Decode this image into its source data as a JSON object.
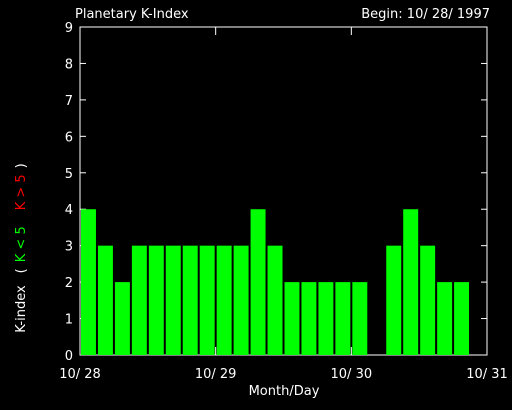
{
  "chart_data": {
    "type": "bar",
    "title": "Planetary K-Index",
    "subtitle": "Begin: 10/ 28/ 1997",
    "x_label": "Month/Day",
    "y_label": {
      "text": "K-index",
      "open": "(",
      "close": ")"
    },
    "legend": [
      {
        "label": "K < 5",
        "color": "#00ff00"
      },
      {
        "label": "K > 5",
        "color": "#ff0000"
      }
    ],
    "x": [
      0,
      3,
      6,
      9,
      12,
      15,
      18,
      21,
      24,
      27,
      30,
      33,
      36,
      39,
      42,
      45,
      48,
      51,
      54,
      57,
      60,
      63,
      66,
      69
    ],
    "values": [
      4,
      3,
      2,
      3,
      3,
      3,
      3,
      3,
      3,
      3,
      4,
      3,
      2,
      2,
      2,
      2,
      2,
      null,
      3,
      4,
      3,
      2,
      2,
      null
    ],
    "color": "#00ff00",
    "xlim": [
      0,
      72
    ],
    "xticks": [
      {
        "value": 0,
        "label": "10/ 28"
      },
      {
        "value": 24,
        "label": "10/ 29"
      },
      {
        "value": 48,
        "label": "10/ 30"
      },
      {
        "value": 72,
        "label": "10/ 31"
      }
    ],
    "ylim": [
      0,
      9
    ],
    "yticks": [
      0,
      1,
      2,
      3,
      4,
      5,
      6,
      7,
      8,
      9
    ]
  }
}
